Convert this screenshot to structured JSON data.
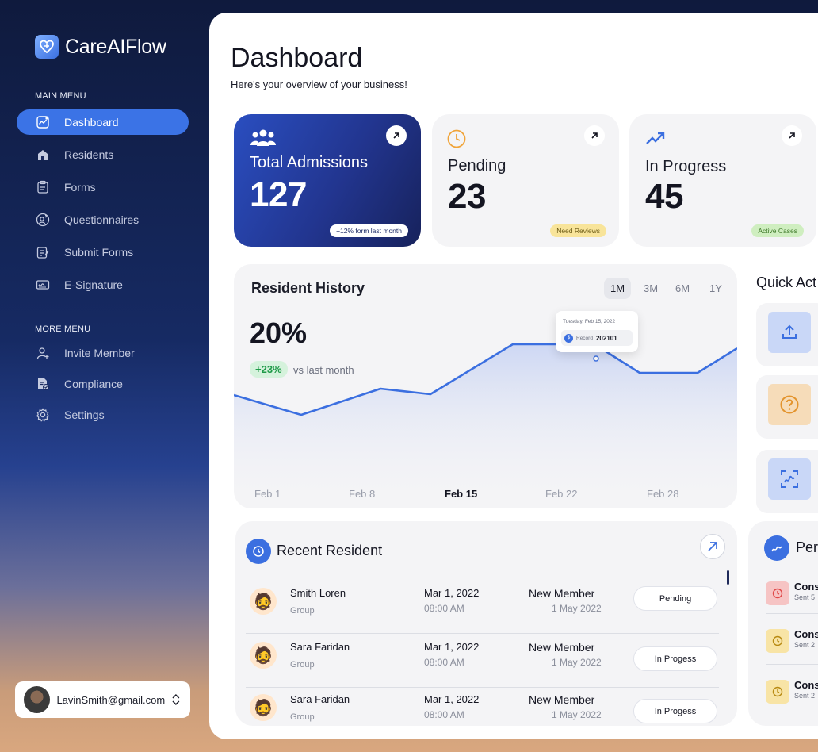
{
  "app": {
    "name": "CareAIFlow"
  },
  "sidebar": {
    "main_heading": "MAIN MENU",
    "main_items": [
      {
        "label": "Dashboard",
        "icon": "dashboard-icon",
        "active": true
      },
      {
        "label": "Residents",
        "icon": "home-icon"
      },
      {
        "label": "Forms",
        "icon": "clipboard-icon"
      },
      {
        "label": "Questionnaires",
        "icon": "user-question-icon"
      },
      {
        "label": "Submit Forms",
        "icon": "submit-form-icon"
      },
      {
        "label": "E-Signature",
        "icon": "signature-icon"
      }
    ],
    "more_heading": "MORE MENU",
    "more_items": [
      {
        "label": "Invite Member",
        "icon": "user-plus-icon"
      },
      {
        "label": "Compliance",
        "icon": "compliance-icon"
      },
      {
        "label": "Settings",
        "icon": "gear-icon"
      }
    ],
    "account": {
      "email": "LavinSmith@gmail.com"
    }
  },
  "header": {
    "title": "Dashboard",
    "subtitle": "Here's your overview of your business!"
  },
  "stats": [
    {
      "label": "Total Admissions",
      "value": "127",
      "badge": "+12% form last month"
    },
    {
      "label": "Pending",
      "value": "23",
      "badge": "Need Reviews"
    },
    {
      "label": "In Progress",
      "value": "45",
      "badge": "Active Cases"
    }
  ],
  "history": {
    "title": "Resident History",
    "ranges": [
      "1M",
      "3M",
      "6M",
      "1Y"
    ],
    "active_range": "1M",
    "percent": "20%",
    "trend": "+23%",
    "trend_text": "vs last month",
    "tooltip": {
      "date": "Tuesday, Feb 15, 2022",
      "key": "Record",
      "value": "202101"
    },
    "x_ticks": [
      "Feb 1",
      "Feb 8",
      "Feb 15",
      "Feb 22",
      "Feb 28"
    ]
  },
  "quick_actions": {
    "title": "Quick Act",
    "items": [
      {
        "icon": "upload-icon",
        "color": "#c9d7f7"
      },
      {
        "icon": "help-icon",
        "color": "#f6dcb9"
      },
      {
        "icon": "scan-signature-icon",
        "color": "#c9d7f7"
      }
    ]
  },
  "recent": {
    "title": "Recent Resident",
    "rows": [
      {
        "name": "Smith Loren",
        "group": "Group",
        "date": "Mar 1, 2022",
        "time": "08:00 AM",
        "type": "New Member",
        "joined": "1 May 2022",
        "status": "Pending"
      },
      {
        "name": "Sara Faridan",
        "group": "Group",
        "date": "Mar 1, 2022",
        "time": "08:00 AM",
        "type": "New Member",
        "joined": "1 May 2022",
        "status": "In Progess"
      },
      {
        "name": "Sara Faridan",
        "group": "Group",
        "date": "Mar 1, 2022",
        "time": "08:00 AM",
        "type": "New Member",
        "joined": "1 May 2022",
        "status": "In Progess"
      }
    ]
  },
  "pending_panel": {
    "title": "Per",
    "items": [
      {
        "title": "Cons",
        "sub": "Sent 5",
        "color": "#f6c4c4"
      },
      {
        "title": "Cons",
        "sub": "Sent 2",
        "color": "#f8e4a6"
      },
      {
        "title": "Cons",
        "sub": "Sent 2",
        "color": "#f8e4a6"
      }
    ]
  }
}
